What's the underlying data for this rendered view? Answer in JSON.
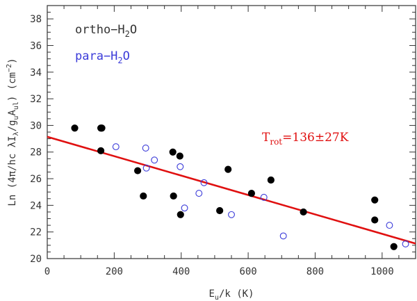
{
  "chart_data": {
    "type": "scatter",
    "xlabel": "E_u/k (K)",
    "ylabel": "Ln (4π/hc λI_λ/g_uA_ul) (cm^-2)",
    "xlim": [
      0,
      1100
    ],
    "ylim": [
      20,
      39
    ],
    "x_ticks": [
      0,
      200,
      400,
      600,
      800,
      1000
    ],
    "y_ticks": [
      20,
      22,
      24,
      26,
      28,
      30,
      32,
      34,
      36,
      38
    ],
    "colors": {
      "ortho": "#000000",
      "para": "#3b3bd9",
      "fit": "#e01010",
      "axis": "#333333"
    },
    "series": [
      {
        "name": "ortho-H2O",
        "marker": "filled-circle",
        "points": [
          [
            82,
            29.8
          ],
          [
            160,
            29.8
          ],
          [
            163,
            29.8
          ],
          [
            160,
            28.1
          ],
          [
            270,
            26.6
          ],
          [
            287,
            24.7
          ],
          [
            375,
            28.0
          ],
          [
            377,
            24.7
          ],
          [
            396,
            27.7
          ],
          [
            398,
            23.3
          ],
          [
            515,
            23.6
          ],
          [
            540,
            26.7
          ],
          [
            610,
            24.9
          ],
          [
            668,
            25.9
          ],
          [
            765,
            23.5
          ],
          [
            978,
            24.4
          ],
          [
            978,
            22.9
          ],
          [
            1035,
            20.9
          ]
        ]
      },
      {
        "name": "para-H2O",
        "marker": "open-circle",
        "points": [
          [
            205,
            28.4
          ],
          [
            294,
            28.3
          ],
          [
            296,
            26.8
          ],
          [
            320,
            27.4
          ],
          [
            397,
            26.9
          ],
          [
            410,
            23.8
          ],
          [
            453,
            24.9
          ],
          [
            468,
            25.7
          ],
          [
            550,
            23.3
          ],
          [
            647,
            24.6
          ],
          [
            705,
            21.7
          ],
          [
            1022,
            22.5
          ],
          [
            1070,
            21.1
          ]
        ]
      }
    ],
    "fit_line": {
      "x": [
        0,
        1100
      ],
      "y": [
        29.15,
        21.13
      ]
    },
    "legend": {
      "ortho": {
        "prefix": "ortho−H",
        "sub": "2",
        "suffix": "O"
      },
      "para": {
        "prefix": "para−H",
        "sub": "2",
        "suffix": "O"
      }
    },
    "annotation": {
      "prefix": "T",
      "sub": "rot",
      "suffix": "=136±27K"
    }
  }
}
